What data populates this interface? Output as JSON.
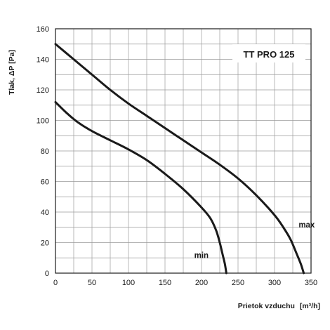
{
  "chart_data": {
    "type": "line",
    "title": "TT PRO 125",
    "xlabel": "Prietok vzduchu",
    "xlabel_unit": "[m³/h]",
    "ylabel": "Tlak, ΔP [Pa]",
    "xlim": [
      0,
      350
    ],
    "ylim": [
      0,
      160
    ],
    "xticks": [
      0,
      50,
      100,
      150,
      200,
      250,
      300,
      350
    ],
    "yticks": [
      0,
      20,
      40,
      60,
      80,
      100,
      120,
      140,
      160
    ],
    "minor_x_step": 25,
    "minor_y_step": 10,
    "grid": true,
    "series": [
      {
        "name": "max",
        "label_at": [
          333,
          30
        ],
        "points": [
          [
            0,
            150
          ],
          [
            25,
            140
          ],
          [
            50,
            130
          ],
          [
            75,
            120
          ],
          [
            100,
            111
          ],
          [
            125,
            103
          ],
          [
            150,
            95
          ],
          [
            175,
            87
          ],
          [
            200,
            79
          ],
          [
            225,
            71
          ],
          [
            250,
            62
          ],
          [
            275,
            51
          ],
          [
            300,
            38
          ],
          [
            312,
            30
          ],
          [
            322,
            22
          ],
          [
            330,
            13
          ],
          [
            336,
            6
          ],
          [
            340,
            0
          ]
        ]
      },
      {
        "name": "min",
        "label_at": [
          190,
          10
        ],
        "points": [
          [
            0,
            112
          ],
          [
            15,
            105
          ],
          [
            30,
            99
          ],
          [
            50,
            93
          ],
          [
            75,
            87
          ],
          [
            100,
            81
          ],
          [
            125,
            74
          ],
          [
            150,
            65
          ],
          [
            175,
            55
          ],
          [
            200,
            43
          ],
          [
            212,
            36
          ],
          [
            220,
            28
          ],
          [
            225,
            20
          ],
          [
            229,
            12
          ],
          [
            232,
            6
          ],
          [
            234,
            0
          ]
        ]
      }
    ]
  }
}
